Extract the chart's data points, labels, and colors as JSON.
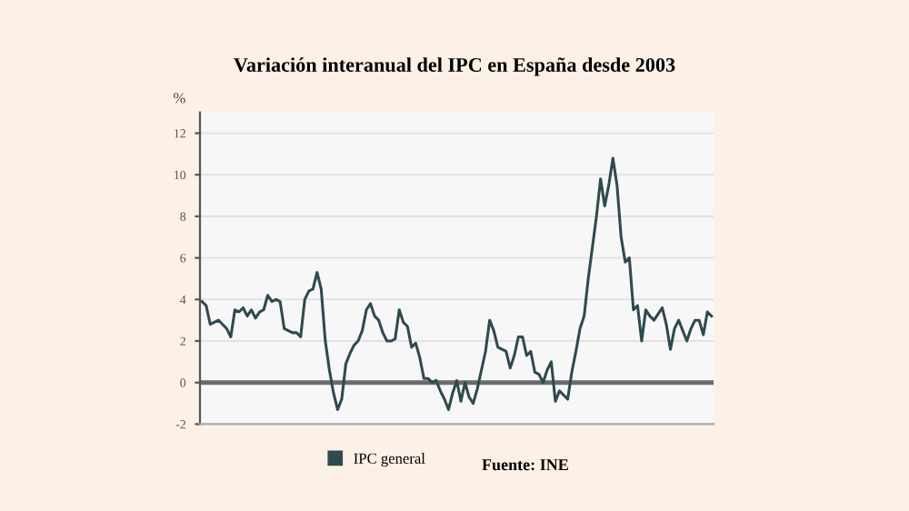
{
  "chart_data": {
    "type": "line",
    "title": "Variación interanual del IPC en España desde 2003",
    "ylabel": "%",
    "categories": [
      null,
      null,
      null,
      null,
      null,
      null,
      null,
      null,
      null,
      null,
      null,
      null,
      null,
      null,
      null,
      null,
      null,
      null,
      null,
      null,
      null,
      null,
      null,
      null,
      null,
      null,
      null,
      null,
      null,
      null,
      null,
      null,
      null,
      null,
      null,
      null,
      null,
      null,
      null,
      null,
      null,
      null,
      null,
      null,
      null,
      null,
      null,
      null,
      null,
      null,
      null,
      null,
      null,
      null,
      null,
      null,
      null,
      null,
      null,
      null,
      null,
      null,
      null,
      null,
      null,
      null,
      null,
      null,
      null,
      null,
      null,
      null,
      null,
      null,
      null,
      null,
      null,
      null,
      null,
      null,
      null,
      null,
      null,
      null,
      null,
      null,
      null,
      null,
      null,
      null,
      null,
      null,
      null,
      null,
      null,
      null,
      null,
      null,
      null,
      null,
      null,
      null,
      null,
      null,
      null,
      null,
      null,
      null,
      null,
      null,
      null,
      null,
      null,
      null,
      null,
      null,
      null,
      null,
      null,
      null,
      null,
      null,
      null,
      null,
      null
    ],
    "series": [
      {
        "name": "IPC general",
        "color": "#2f4a4f",
        "values": [
          3.9,
          3.7,
          2.8,
          2.9,
          3.0,
          2.8,
          2.6,
          2.2,
          3.5,
          3.4,
          3.6,
          3.2,
          3.5,
          3.1,
          3.4,
          3.5,
          4.2,
          3.9,
          4.0,
          3.9,
          2.6,
          2.5,
          2.4,
          2.4,
          2.2,
          4.0,
          4.4,
          4.5,
          5.3,
          4.5,
          2.0,
          0.6,
          -0.5,
          -1.3,
          -0.8,
          0.9,
          1.4,
          1.8,
          2.0,
          2.5,
          3.5,
          3.8,
          3.2,
          3.0,
          2.4,
          2.0,
          2.0,
          2.1,
          3.5,
          2.9,
          2.7,
          1.7,
          1.9,
          1.2,
          0.2,
          0.2,
          0.0,
          0.1,
          -0.4,
          -0.8,
          -1.3,
          -0.5,
          0.1,
          -0.9,
          0.0,
          -0.7,
          -1.0,
          -0.3,
          0.6,
          1.5,
          3.0,
          2.5,
          1.7,
          1.6,
          1.5,
          0.7,
          1.3,
          2.2,
          2.2,
          1.3,
          1.5,
          0.5,
          0.4,
          0.0,
          0.6,
          1.0,
          -0.9,
          -0.4,
          -0.6,
          -0.8,
          0.5,
          1.5,
          2.6,
          3.2,
          5.0,
          6.5,
          8.0,
          9.8,
          8.5,
          9.5,
          10.8,
          9.5,
          7.0,
          5.8,
          6.0,
          3.5,
          3.7,
          2.0,
          3.5,
          3.2,
          3.0,
          3.3,
          3.6,
          2.8,
          1.6,
          2.6,
          3.0,
          2.5,
          2.0,
          2.6,
          3.0,
          3.0,
          2.3,
          3.4,
          3.2
        ]
      }
    ],
    "ylim": [
      -2,
      13
    ],
    "yticks": [
      -2,
      0,
      2,
      4,
      6,
      8,
      10,
      12
    ],
    "grid": "y",
    "legend": "bottom",
    "marker": "none",
    "line_style": "solid",
    "ref_lines": [
      {
        "axis": "y",
        "value": 0,
        "color": "#6b6b6b"
      }
    ],
    "annotations": [
      "Fuente: INE"
    ]
  }
}
